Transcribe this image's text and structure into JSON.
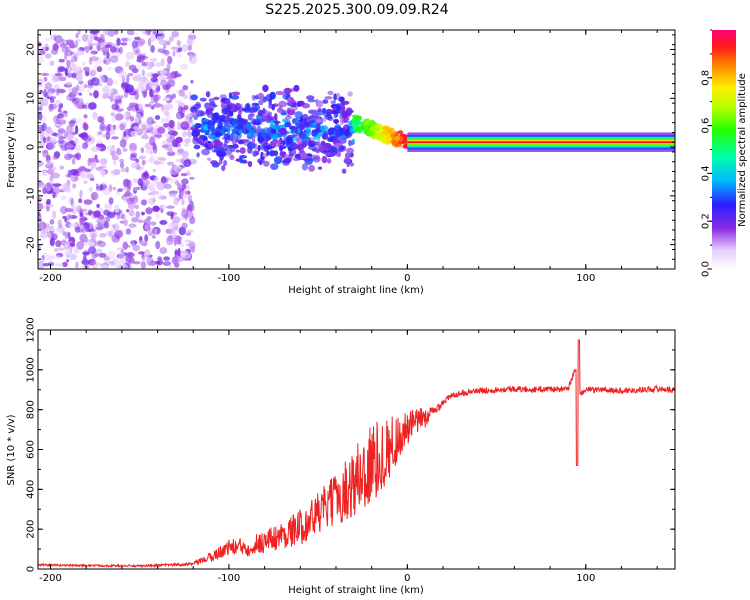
{
  "title": "S225.2025.300.09.09.R24",
  "colors": {
    "spectrum": "#6a1fe0",
    "snr_line": "#ee2222",
    "frame": "#000000"
  },
  "chart_data": [
    {
      "type": "heatmap",
      "name": "spectrogram",
      "xlabel": "Height of straight line (km)",
      "ylabel": "Frequency (Hz)",
      "xlim": [
        -207,
        150
      ],
      "ylim": [
        -25,
        24
      ],
      "x_ticks": [
        "-200",
        "-100",
        "0",
        "100"
      ],
      "x_tick_values": [
        -200,
        -100,
        0,
        100
      ],
      "y_ticks": [
        "20",
        "10",
        "0",
        "-10",
        "-20"
      ],
      "y_tick_values": [
        20,
        10,
        0,
        -10,
        -20
      ],
      "colorbar": {
        "label": "Normalized spectral amplitude",
        "ticks": [
          "0.0",
          "0.2",
          "0.4",
          "0.6",
          "0.8"
        ],
        "tick_values": [
          0.0,
          0.2,
          0.4,
          0.6,
          0.8
        ],
        "range": [
          0,
          1
        ]
      },
      "carrier": {
        "frequency_hz": 1,
        "x_start_km": 0,
        "x_end_km": 150,
        "amplitude": 1.0
      },
      "regions": [
        {
          "x_range": [
            -207,
            -120
          ],
          "freq_range": [
            -25,
            24
          ],
          "amplitude": 0.05
        },
        {
          "x_range": [
            -120,
            -30
          ],
          "freq_range": [
            -8,
            12
          ],
          "amplitude": 0.2
        },
        {
          "x_range": [
            -30,
            0
          ],
          "freq_range": [
            0,
            6
          ],
          "amplitude": 0.45
        }
      ]
    },
    {
      "type": "line",
      "name": "snr",
      "xlabel": "Height of straight line (km)",
      "ylabel": "SNR (10 * v/v)",
      "xlim": [
        -207,
        150
      ],
      "ylim": [
        0,
        1200
      ],
      "x_ticks": [
        "-200",
        "-100",
        "0",
        "100"
      ],
      "x_tick_values": [
        -200,
        -100,
        0,
        100
      ],
      "y_ticks": [
        "0",
        "200",
        "400",
        "600",
        "800",
        "1000",
        "1200"
      ],
      "y_tick_values": [
        0,
        200,
        400,
        600,
        800,
        1000,
        1200
      ],
      "series": [
        {
          "name": "SNR",
          "x": [
            -207,
            -150,
            -120,
            -110,
            -100,
            -90,
            -80,
            -70,
            -60,
            -50,
            -40,
            -30,
            -25,
            -20,
            -15,
            -10,
            -5,
            0,
            5,
            10,
            15,
            20,
            25,
            30,
            40,
            50,
            60,
            70,
            80,
            90,
            94,
            95,
            96,
            97,
            100,
            110,
            120,
            130,
            140,
            150
          ],
          "y": [
            20,
            15,
            25,
            60,
            110,
            110,
            140,
            170,
            210,
            280,
            350,
            430,
            480,
            520,
            560,
            610,
            660,
            700,
            740,
            760,
            790,
            840,
            870,
            885,
            895,
            900,
            905,
            900,
            905,
            900,
            1000,
            520,
            1150,
            880,
            900,
            900,
            895,
            900,
            905,
            900
          ],
          "noise": [
            5,
            5,
            8,
            25,
            40,
            50,
            60,
            70,
            90,
            110,
            130,
            180,
            220,
            230,
            180,
            160,
            120,
            90,
            70,
            50,
            30,
            20,
            15,
            15,
            15,
            15,
            15,
            15,
            15,
            15,
            15,
            15,
            15,
            15,
            15,
            15,
            15,
            15,
            15,
            15
          ]
        }
      ]
    }
  ]
}
